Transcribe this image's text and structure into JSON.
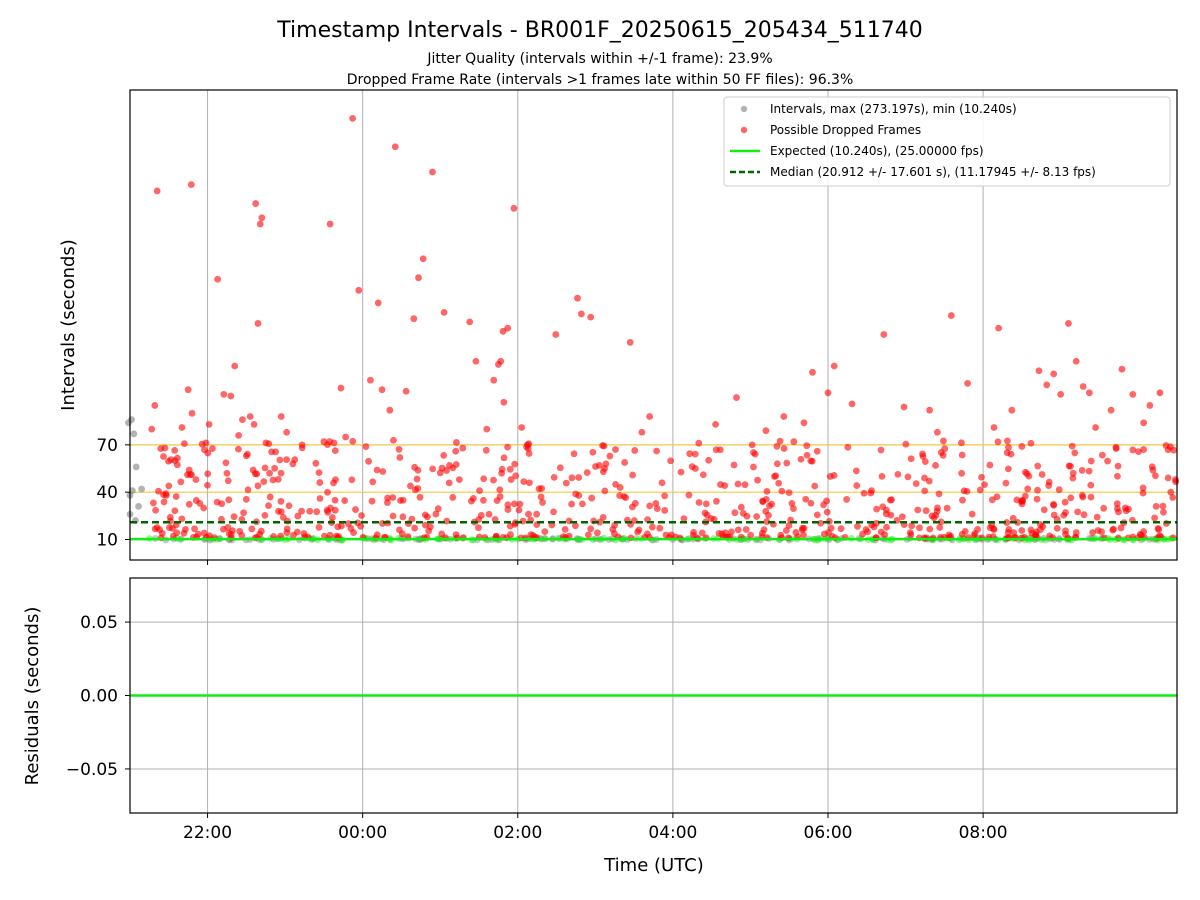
{
  "figure": {
    "title": "Timestamp Intervals - BR001F_20250615_205434_511740",
    "subtitle1": "Jitter Quality (intervals within +/-1 frame): 23.9%",
    "subtitle2": "Dropped Frame Rate (intervals >1 frames late within 50 FF files): 96.3%"
  },
  "colors": {
    "interval": "#808080",
    "dropped": "#ff0000",
    "expected": "#11ee11",
    "median": "#006400",
    "threshold": "#f5c542",
    "grid": "#b0b0b0"
  },
  "chart_data": [
    {
      "type": "scatter",
      "ylabel": "Intervals (seconds)",
      "xlabel": "",
      "x_unit": "hours since 00:00 UTC",
      "xlim": [
        -3.0,
        10.5
      ],
      "ylim": [
        -3,
        295
      ],
      "yticks": [
        10,
        40,
        70
      ],
      "xticks": [
        -2,
        0,
        2,
        4,
        6,
        8
      ],
      "xtick_labels": [
        "22:00",
        "00:00",
        "02:00",
        "04:00",
        "06:00",
        "08:00"
      ],
      "threshold_lines": [
        40,
        70
      ],
      "expected_interval": 10.24,
      "median_interval": 20.912,
      "grid": "x",
      "legend_position": "top-right",
      "legend": [
        "Intervals, max (273.197s), min (10.240s)",
        "Possible Dropped Frames",
        "Expected (10.240s), (25.00000 fps)",
        "Median (20.912 +/- 17.601 s), (11.17945 +/- 8.13 fps)"
      ],
      "series": [
        {
          "name": "Intervals, max (273.197s), min (10.240s)",
          "points": [
            [
              -3.02,
              84
            ],
            [
              -2.98,
              86
            ],
            [
              -2.95,
              77
            ],
            [
              -3.0,
              38
            ],
            [
              -2.97,
              41
            ],
            [
              -2.92,
              56
            ],
            [
              -2.89,
              31
            ],
            [
              -2.85,
              42
            ],
            [
              -3.0,
              26
            ],
            [
              -2.93,
              22
            ]
          ]
        },
        {
          "name": "Possible Dropped Frames",
          "points": [
            [
              -2.65,
              231
            ],
            [
              -2.68,
              95
            ],
            [
              -2.72,
              80
            ],
            [
              -2.55,
              68
            ],
            [
              -2.5,
              44
            ],
            [
              -2.42,
              60
            ],
            [
              -2.33,
              81
            ],
            [
              -2.25,
              105
            ],
            [
              -2.2,
              90
            ],
            [
              -2.21,
              235
            ],
            [
              -2.15,
              48
            ],
            [
              -2.05,
              30
            ],
            [
              -1.98,
              83
            ],
            [
              -1.87,
              175
            ],
            [
              -1.79,
              102
            ],
            [
              -1.75,
              52
            ],
            [
              -1.7,
              101
            ],
            [
              -1.65,
              120
            ],
            [
              -1.6,
              76
            ],
            [
              -1.55,
              86
            ],
            [
              -1.5,
              63
            ],
            [
              -1.45,
              88
            ],
            [
              -1.4,
              83
            ],
            [
              -1.35,
              147
            ],
            [
              -1.38,
              223
            ],
            [
              -1.32,
              210
            ],
            [
              -1.3,
              214
            ],
            [
              -1.2,
              52
            ],
            [
              -1.15,
              12
            ],
            [
              -1.05,
              88
            ],
            [
              -0.98,
              78
            ],
            [
              -0.9,
              58
            ],
            [
              -0.78,
              70
            ],
            [
              -0.55,
              36
            ],
            [
              -0.5,
              72
            ],
            [
              -0.42,
              210
            ],
            [
              -0.28,
              106
            ],
            [
              -0.22,
              75
            ],
            [
              -0.13,
              277
            ],
            [
              -0.05,
              168
            ],
            [
              0.1,
              111
            ],
            [
              0.2,
              160
            ],
            [
              0.25,
              105
            ],
            [
              0.42,
              259
            ],
            [
              0.35,
              92
            ],
            [
              0.48,
              62
            ],
            [
              0.56,
              104
            ],
            [
              0.66,
              150
            ],
            [
              0.72,
              176
            ],
            [
              0.78,
              188
            ],
            [
              0.9,
              243
            ],
            [
              1.05,
              154
            ],
            [
              1.12,
              57
            ],
            [
              1.2,
              66
            ],
            [
              1.38,
              148
            ],
            [
              1.46,
              123
            ],
            [
              1.6,
              80
            ],
            [
              1.69,
              111
            ],
            [
              1.75,
              121
            ],
            [
              1.78,
              123
            ],
            [
              1.81,
              142
            ],
            [
              1.87,
              144
            ],
            [
              1.95,
              220
            ],
            [
              1.82,
              97
            ],
            [
              2.05,
              81
            ],
            [
              2.15,
              46
            ],
            [
              2.3,
              37
            ],
            [
              2.49,
              140
            ],
            [
              2.77,
              163
            ],
            [
              2.82,
              153
            ],
            [
              2.94,
              151
            ],
            [
              3.12,
              55
            ],
            [
              3.32,
              43
            ],
            [
              3.45,
              135
            ],
            [
              3.6,
              78
            ],
            [
              3.7,
              88
            ],
            [
              3.86,
              46
            ],
            [
              4.29,
              55
            ],
            [
              4.55,
              83
            ],
            [
              4.82,
              100
            ],
            [
              5.2,
              79
            ],
            [
              5.43,
              88
            ],
            [
              5.69,
              84
            ],
            [
              5.8,
              116
            ],
            [
              6.0,
              103
            ],
            [
              6.08,
              120
            ],
            [
              6.31,
              96
            ],
            [
              6.72,
              140
            ],
            [
              6.98,
              94
            ],
            [
              7.31,
              92
            ],
            [
              7.41,
              78
            ],
            [
              7.59,
              152
            ],
            [
              7.8,
              109
            ],
            [
              8.14,
              81
            ],
            [
              8.31,
              65
            ],
            [
              8.2,
              144
            ],
            [
              8.37,
              92
            ],
            [
              8.5,
              69
            ],
            [
              8.72,
              117
            ],
            [
              8.82,
              108
            ],
            [
              8.91,
              115
            ],
            [
              9.0,
              102
            ],
            [
              9.1,
              147
            ],
            [
              9.2,
              123
            ],
            [
              9.29,
              107
            ],
            [
              9.37,
              103
            ],
            [
              9.45,
              81
            ],
            [
              9.65,
              92
            ],
            [
              9.79,
              118
            ],
            [
              9.93,
              102
            ],
            [
              10.07,
              84
            ],
            [
              10.15,
              95
            ],
            [
              10.28,
              103
            ],
            [
              10.42,
              40
            ],
            [
              10.48,
              48
            ]
          ]
        }
      ]
    },
    {
      "type": "line",
      "ylabel": "Residuals (seconds)",
      "xlabel": "Time (UTC)",
      "x_unit": "hours since 00:00 UTC",
      "xlim": [
        -3.0,
        10.5
      ],
      "ylim": [
        -0.08,
        0.08
      ],
      "yticks": [
        0.05,
        0.0,
        -0.05
      ],
      "ytick_labels": [
        "0.05",
        "0.00",
        "−0.05"
      ],
      "xticks": [
        -2,
        0,
        2,
        4,
        6,
        8
      ],
      "xtick_labels": [
        "22:00",
        "00:00",
        "02:00",
        "04:00",
        "06:00",
        "08:00"
      ],
      "grid": "both",
      "series": [
        {
          "name": "",
          "values": [
            0.0
          ]
        }
      ]
    }
  ]
}
